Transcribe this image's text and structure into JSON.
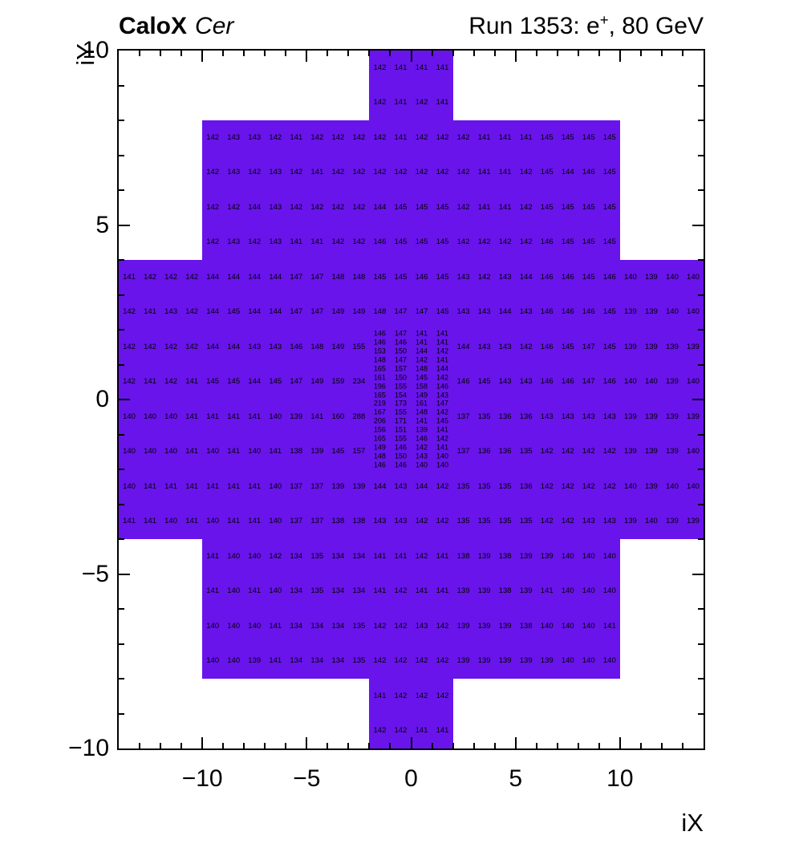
{
  "header": {
    "experiment": "CaloX",
    "detector": "Cer",
    "run_prefix": "Run 1353: e",
    "run_sup": "+",
    "run_suffix": ", 80 GeV"
  },
  "chart_data": {
    "type": "heatmap",
    "title": "CaloX Cer — Run 1353: e+, 80 GeV",
    "xlabel": "iX",
    "ylabel": "iY",
    "xlim": [
      -14,
      14
    ],
    "ylim": [
      -10,
      10
    ],
    "grid": false,
    "legend": "none",
    "fill_color": "#6914EB",
    "text_color": "#000000",
    "x_ticks": [
      {
        "v": -10,
        "label": "−10"
      },
      {
        "v": -5,
        "label": "−5"
      },
      {
        "v": 0,
        "label": "0"
      },
      {
        "v": 5,
        "label": "5"
      },
      {
        "v": 10,
        "label": "10"
      }
    ],
    "y_ticks": [
      {
        "v": 10,
        "label": "10"
      },
      {
        "v": 5,
        "label": "5"
      },
      {
        "v": 0,
        "label": "0"
      },
      {
        "v": -5,
        "label": "−5"
      },
      {
        "v": -10,
        "label": "−10"
      }
    ],
    "blocks": [
      [
        -2,
        8,
        2,
        10
      ],
      [
        -10,
        4,
        10,
        8
      ],
      [
        -14,
        -4,
        14,
        4
      ],
      [
        -10,
        -8,
        10,
        -4
      ],
      [
        -2,
        -10,
        2,
        -8
      ]
    ],
    "regions": [
      {
        "name": "top-column",
        "x0": -2,
        "ytop": 10,
        "cw": 1,
        "ch": 1,
        "values": [
          [
            142,
            141,
            141,
            141
          ],
          [
            142,
            141,
            142,
            141
          ]
        ]
      },
      {
        "name": "top-wide",
        "x0": -10,
        "ytop": 8,
        "cw": 1,
        "ch": 1,
        "values": [
          [
            142,
            143,
            143,
            142,
            141,
            142,
            142,
            142,
            142,
            141,
            142,
            142,
            142,
            141,
            141,
            141,
            145,
            145,
            145,
            145
          ],
          [
            142,
            143,
            142,
            143,
            142,
            141,
            142,
            142,
            142,
            142,
            142,
            142,
            142,
            141,
            141,
            142,
            145,
            144,
            146,
            145
          ],
          [
            142,
            142,
            144,
            143,
            142,
            142,
            142,
            142,
            144,
            145,
            145,
            145,
            142,
            141,
            141,
            142,
            145,
            145,
            145,
            145
          ],
          [
            142,
            143,
            142,
            143,
            141,
            141,
            142,
            142,
            146,
            145,
            145,
            145,
            142,
            142,
            142,
            142,
            146,
            145,
            145,
            145
          ]
        ]
      },
      {
        "name": "band-upper",
        "x0": -14,
        "ytop": 4,
        "cw": 1,
        "ch": 1,
        "values": [
          [
            141,
            142,
            142,
            142,
            144,
            144,
            144,
            144,
            147,
            147,
            148,
            148,
            145,
            145,
            146,
            145,
            143,
            142,
            143,
            144,
            146,
            146,
            145,
            146,
            140,
            139,
            140,
            140
          ],
          [
            142,
            141,
            143,
            142,
            144,
            145,
            144,
            144,
            147,
            147,
            149,
            149,
            148,
            147,
            147,
            145,
            143,
            143,
            144,
            143,
            146,
            146,
            146,
            145,
            139,
            139,
            140,
            140
          ]
        ]
      },
      {
        "name": "mid-left",
        "x0": -14,
        "ytop": 2,
        "cw": 1,
        "ch": 1,
        "values": [
          [
            142,
            142,
            142,
            142,
            144,
            144,
            143,
            143,
            146,
            148,
            149,
            155
          ],
          [
            142,
            141,
            142,
            141,
            145,
            145,
            144,
            145,
            147,
            149,
            159,
            234
          ],
          [
            140,
            140,
            140,
            141,
            141,
            141,
            141,
            140,
            139,
            141,
            160,
            288
          ],
          [
            140,
            140,
            140,
            141,
            140,
            141,
            140,
            141,
            138,
            139,
            145,
            157
          ]
        ]
      },
      {
        "name": "center-fine",
        "x0": -2,
        "ytop": 2,
        "cw": 1,
        "ch": 0.25,
        "values": [
          [
            146,
            147,
            141,
            141
          ],
          [
            146,
            146,
            141,
            141
          ],
          [
            153,
            150,
            144,
            142
          ],
          [
            148,
            147,
            142,
            141
          ],
          [
            165,
            157,
            148,
            144
          ],
          [
            161,
            150,
            145,
            142
          ],
          [
            196,
            155,
            158,
            146
          ],
          [
            165,
            154,
            149,
            143
          ],
          [
            219,
            173,
            161,
            147
          ],
          [
            167,
            155,
            148,
            142
          ],
          [
            206,
            171,
            141,
            145
          ],
          [
            156,
            151,
            139,
            141
          ],
          [
            165,
            155,
            146,
            142
          ],
          [
            149,
            146,
            142,
            141
          ],
          [
            148,
            150,
            143,
            140
          ],
          [
            146,
            146,
            140,
            140
          ]
        ]
      },
      {
        "name": "mid-right",
        "x0": 2,
        "ytop": 2,
        "cw": 1,
        "ch": 1,
        "values": [
          [
            144,
            143,
            143,
            142,
            146,
            145,
            147,
            145,
            139,
            139,
            139,
            139
          ],
          [
            146,
            145,
            143,
            143,
            146,
            146,
            147,
            146,
            140,
            140,
            139,
            140
          ],
          [
            137,
            135,
            136,
            136,
            143,
            143,
            143,
            143,
            139,
            139,
            139,
            139
          ],
          [
            137,
            136,
            136,
            135,
            142,
            142,
            142,
            142,
            139,
            139,
            139,
            140
          ]
        ]
      },
      {
        "name": "band-lower",
        "x0": -14,
        "ytop": -2,
        "cw": 1,
        "ch": 1,
        "values": [
          [
            140,
            141,
            141,
            141,
            141,
            141,
            141,
            140,
            137,
            137,
            139,
            139,
            144,
            143,
            144,
            142,
            135,
            135,
            135,
            136,
            142,
            142,
            142,
            142,
            140,
            139,
            140,
            140
          ],
          [
            141,
            141,
            140,
            141,
            140,
            141,
            141,
            140,
            137,
            137,
            138,
            138,
            143,
            143,
            142,
            142,
            135,
            135,
            135,
            135,
            142,
            142,
            143,
            143,
            139,
            140,
            139,
            139
          ]
        ]
      },
      {
        "name": "bottom-wide",
        "x0": -10,
        "ytop": -4,
        "cw": 1,
        "ch": 1,
        "values": [
          [
            141,
            140,
            140,
            142,
            134,
            135,
            134,
            134,
            141,
            141,
            142,
            141,
            138,
            139,
            138,
            139,
            139,
            140,
            140,
            140
          ],
          [
            141,
            140,
            141,
            140,
            134,
            135,
            134,
            134,
            141,
            142,
            141,
            141,
            139,
            139,
            138,
            139,
            141,
            140,
            140,
            140
          ],
          [
            140,
            140,
            140,
            141,
            134,
            134,
            134,
            135,
            142,
            142,
            143,
            142,
            139,
            139,
            139,
            138,
            140,
            140,
            140,
            141
          ],
          [
            140,
            140,
            139,
            141,
            134,
            134,
            134,
            135,
            142,
            142,
            142,
            142,
            139,
            139,
            139,
            139,
            139,
            140,
            140,
            140
          ]
        ]
      },
      {
        "name": "bottom-column",
        "x0": -2,
        "ytop": -8,
        "cw": 1,
        "ch": 1,
        "values": [
          [
            141,
            142,
            142,
            142
          ],
          [
            142,
            142,
            141,
            141
          ]
        ]
      }
    ]
  }
}
